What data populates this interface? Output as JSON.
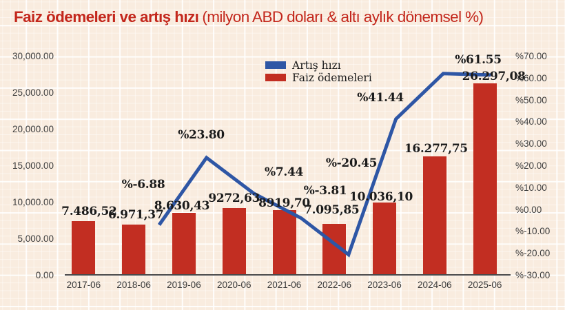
{
  "title": {
    "main": "Faiz ödemeleri ve artış hızı",
    "subtitle": "(milyon ABD doları & altı aylık dönemsel %)"
  },
  "colors": {
    "background": "#f9ecdf",
    "bar": "#c22e22",
    "line": "#2e56a5",
    "title": "#c3271c",
    "axis_text": "#3d3d3d",
    "label_text": "#1b1b1b",
    "axis_line": "#4a4a4a"
  },
  "legend": {
    "items": [
      {
        "label": "Artış hızı",
        "color": "#2e56a5"
      },
      {
        "label": "Faiz ödemeleri",
        "color": "#c22e22"
      }
    ]
  },
  "chart_data": {
    "type": "bar+line",
    "categories": [
      "2017-06",
      "2018-06",
      "2019-06",
      "2020-06",
      "2021-06",
      "2022-06",
      "2023-06",
      "2024-06",
      "2025-06"
    ],
    "series": [
      {
        "name": "Faiz ödemeleri",
        "type": "bar",
        "axis": "left",
        "color": "#c22e22",
        "values": [
          7486.52,
          6971.37,
          8630.43,
          9272.63,
          8919.7,
          7095.85,
          10036.1,
          16277.75,
          26297.08
        ],
        "labels": [
          "7.486,52",
          "6.971,37",
          "8.630,43",
          "9272,63",
          "8919,70",
          "7.095,85",
          "10.036,10",
          "16.277,75",
          "26.297,08"
        ]
      },
      {
        "name": "Artış hızı",
        "type": "line",
        "axis": "right",
        "color": "#2e56a5",
        "values": [
          null,
          -6.88,
          23.8,
          7.44,
          -3.81,
          -20.45,
          41.44,
          62.19,
          61.55
        ],
        "labels": [
          null,
          "%-6.88",
          "%23.80",
          "%7.44",
          "%-3.81",
          "%-20.45",
          "%41.44",
          null,
          "%61.55"
        ]
      }
    ],
    "left_axis": {
      "min": 0,
      "max": 30000,
      "tick_labels": [
        "0.00",
        "5,000.00",
        "10,000.00",
        "15,000.00",
        "20,000.00",
        "25,000.00",
        "30,000.00"
      ]
    },
    "right_axis": {
      "min": -30,
      "max": 70,
      "tick_labels": [
        "%-30.00",
        "%-20.00",
        "%-10.00",
        "%0.00",
        "%10.00",
        "%20.00",
        "%30.00",
        "%40.00",
        "%50.00",
        "%60.00",
        "%70.00"
      ]
    },
    "grid": "white graph-paper background, no plot gridlines",
    "legend_position": "top-center"
  }
}
